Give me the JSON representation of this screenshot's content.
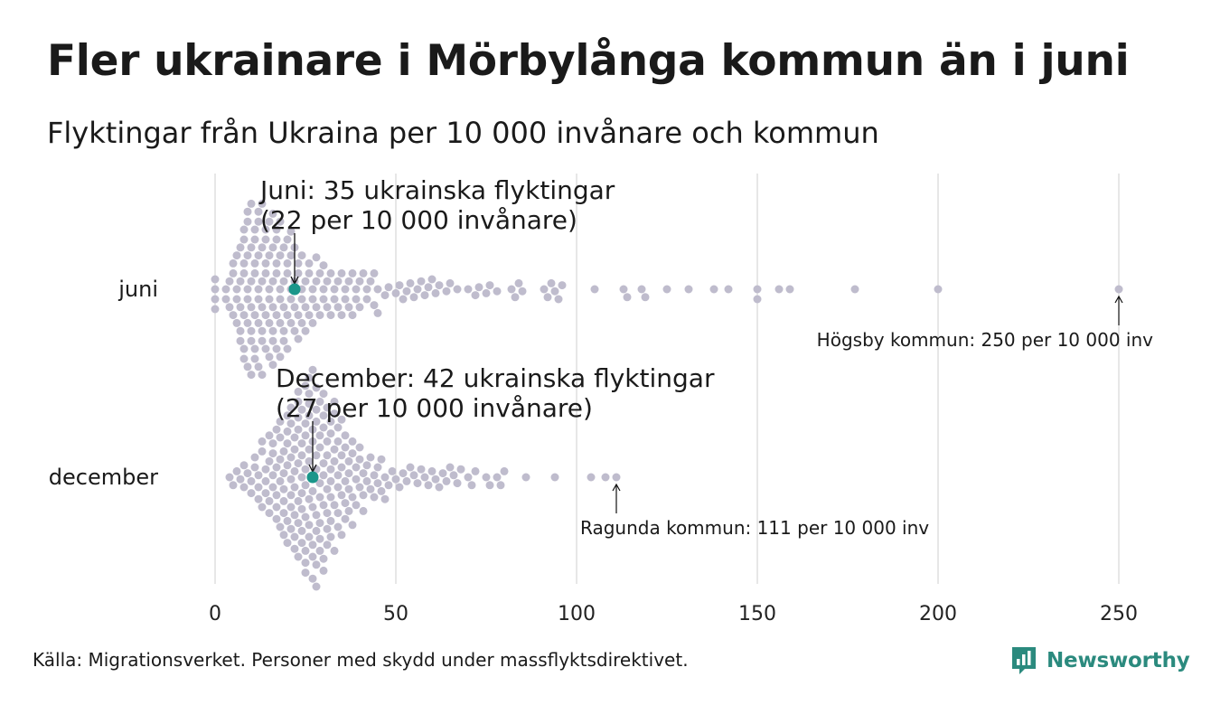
{
  "title": "Fler ukrainare i Mörbylånga kommun än i juni",
  "subtitle": "Flyktingar från Ukraina per 10 000 invånare och kommun",
  "source": "Källa: Migrationsverket. Personer med skydd under massflyktsdirektivet.",
  "brand": "Newsworthy",
  "colors": {
    "dot": "#bfbccd",
    "highlight": "#1a968a",
    "grid": "#cfcfcf"
  },
  "chart_data": {
    "type": "scatter",
    "subtype": "beeswarm",
    "x_ticks": [
      0,
      50,
      100,
      150,
      200,
      250
    ],
    "xlim": [
      0,
      250
    ],
    "grid": "vertical",
    "rows": [
      {
        "name": "juni",
        "values": [
          0,
          0,
          0,
          0,
          3,
          3,
          4,
          4,
          5,
          5,
          5,
          6,
          6,
          6,
          6,
          7,
          7,
          7,
          7,
          7,
          8,
          8,
          8,
          8,
          8,
          8,
          8,
          9,
          9,
          9,
          9,
          9,
          9,
          9,
          10,
          10,
          10,
          10,
          10,
          10,
          10,
          11,
          11,
          11,
          11,
          11,
          11,
          11,
          12,
          12,
          12,
          12,
          12,
          12,
          12,
          13,
          13,
          13,
          13,
          13,
          13,
          13,
          14,
          14,
          14,
          14,
          14,
          14,
          15,
          15,
          15,
          15,
          15,
          15,
          16,
          16,
          16,
          16,
          16,
          16,
          16,
          17,
          17,
          17,
          17,
          17,
          17,
          18,
          18,
          18,
          18,
          18,
          18,
          19,
          19,
          19,
          19,
          19,
          20,
          20,
          20,
          20,
          20,
          21,
          21,
          21,
          21,
          21,
          22,
          22,
          22,
          22,
          23,
          23,
          23,
          23,
          24,
          24,
          24,
          24,
          25,
          25,
          25,
          26,
          26,
          26,
          27,
          27,
          27,
          28,
          28,
          28,
          29,
          29,
          30,
          30,
          30,
          31,
          31,
          32,
          32,
          33,
          33,
          34,
          34,
          35,
          35,
          36,
          36,
          37,
          37,
          38,
          38,
          39,
          39,
          40,
          40,
          41,
          42,
          42,
          43,
          44,
          44,
          45,
          45,
          47,
          48,
          50,
          51,
          52,
          53,
          54,
          55,
          56,
          57,
          58,
          59,
          60,
          61,
          62,
          64,
          65,
          67,
          70,
          72,
          73,
          75,
          76,
          78,
          82,
          83,
          84,
          85,
          91,
          92,
          93,
          94,
          95,
          96,
          105,
          113,
          114,
          118,
          119,
          125,
          131,
          138,
          142,
          150,
          150,
          156,
          159,
          177,
          200,
          250
        ],
        "highlight": {
          "value": 22,
          "label_line1": "Juni: 35 ukrainska flyktingar",
          "label_line2": "(22 per 10 000 invånare)"
        },
        "extreme": {
          "value": 250,
          "label": "Högsby kommun: 250 per 10 000 inv"
        }
      },
      {
        "name": "december",
        "values": [
          4,
          5,
          6,
          7,
          8,
          8,
          9,
          10,
          10,
          11,
          11,
          12,
          12,
          12,
          13,
          13,
          13,
          14,
          14,
          14,
          15,
          15,
          15,
          15,
          16,
          16,
          16,
          16,
          17,
          17,
          17,
          17,
          17,
          18,
          18,
          18,
          18,
          18,
          19,
          19,
          19,
          19,
          19,
          19,
          20,
          20,
          20,
          20,
          20,
          20,
          21,
          21,
          21,
          21,
          21,
          21,
          21,
          22,
          22,
          22,
          22,
          22,
          22,
          22,
          23,
          23,
          23,
          23,
          23,
          23,
          23,
          23,
          24,
          24,
          24,
          24,
          24,
          24,
          24,
          24,
          25,
          25,
          25,
          25,
          25,
          25,
          25,
          25,
          25,
          26,
          26,
          26,
          26,
          26,
          26,
          26,
          26,
          26,
          27,
          27,
          27,
          27,
          27,
          27,
          27,
          27,
          27,
          28,
          28,
          28,
          28,
          28,
          28,
          28,
          28,
          28,
          29,
          29,
          29,
          29,
          29,
          29,
          29,
          29,
          30,
          30,
          30,
          30,
          30,
          30,
          30,
          30,
          31,
          31,
          31,
          31,
          31,
          31,
          31,
          32,
          32,
          32,
          32,
          32,
          32,
          32,
          33,
          33,
          33,
          33,
          33,
          33,
          34,
          34,
          34,
          34,
          34,
          34,
          35,
          35,
          35,
          35,
          35,
          36,
          36,
          36,
          36,
          36,
          37,
          37,
          37,
          37,
          38,
          38,
          38,
          38,
          39,
          39,
          39,
          40,
          40,
          40,
          41,
          41,
          41,
          42,
          42,
          43,
          43,
          44,
          44,
          45,
          45,
          46,
          46,
          47,
          47,
          48,
          49,
          50,
          51,
          52,
          53,
          54,
          55,
          56,
          57,
          58,
          59,
          60,
          61,
          62,
          63,
          64,
          65,
          66,
          67,
          68,
          70,
          71,
          72,
          75,
          76,
          78,
          79,
          80,
          86,
          94,
          104,
          108,
          111
        ],
        "highlight": {
          "value": 27,
          "label_line1": "December: 42 ukrainska flyktingar",
          "label_line2": "(27 per 10 000 invånare)"
        },
        "extreme": {
          "value": 111,
          "label": "Ragunda kommun: 111 per 10 000 inv"
        }
      }
    ]
  }
}
